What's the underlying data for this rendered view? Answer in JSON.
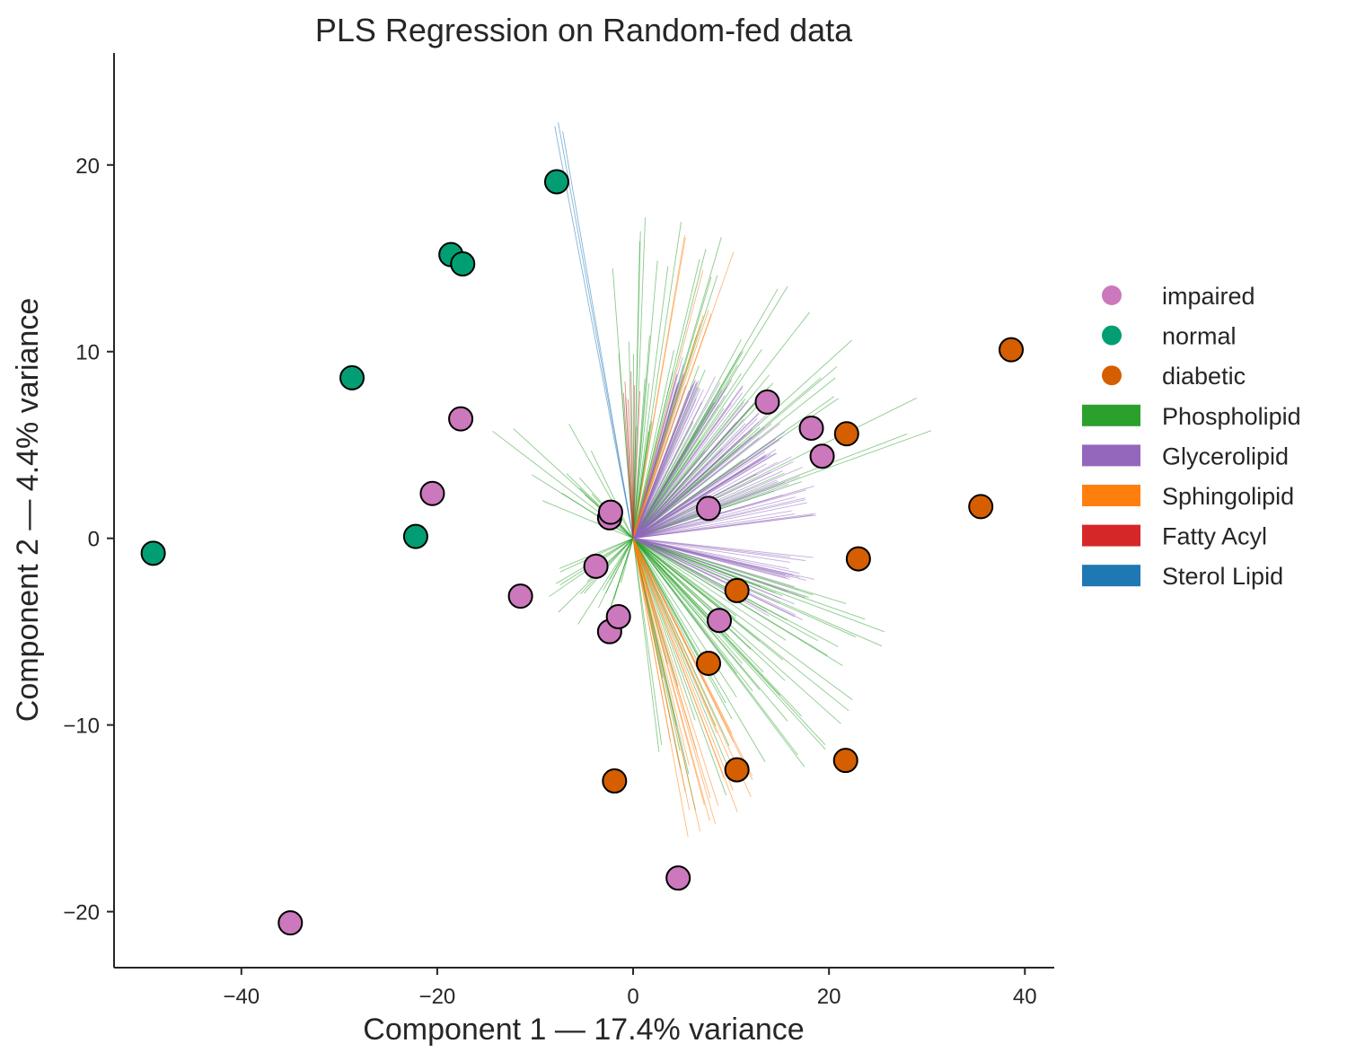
{
  "chart_data": {
    "type": "scatter",
    "title": "PLS Regression on Random-fed data",
    "xlabel": "Component 1 — 17.4% variance",
    "ylabel": "Component 2 — 4.4% variance",
    "xlim": [
      -53,
      43
    ],
    "ylim": [
      -23,
      26
    ],
    "x_ticks": [
      -40,
      -20,
      0,
      20,
      40
    ],
    "y_ticks": [
      -20,
      -10,
      0,
      10,
      20
    ],
    "grid": false,
    "legend_position": "right",
    "series": [
      {
        "name": "impaired",
        "color": "#CC78BC",
        "points": [
          [
            -35,
            -20.6
          ],
          [
            -20.5,
            2.4
          ],
          [
            -17.6,
            6.4
          ],
          [
            -11.5,
            -3.1
          ],
          [
            -3.8,
            -1.5
          ],
          [
            -2.4,
            -5
          ],
          [
            -1.5,
            -4.2
          ],
          [
            -2.4,
            1.1
          ],
          [
            -2.3,
            1.4
          ],
          [
            4.6,
            -18.2
          ],
          [
            7.7,
            1.6
          ],
          [
            8.8,
            -4.4
          ],
          [
            13.7,
            7.3
          ],
          [
            18.2,
            5.9
          ],
          [
            19.3,
            4.4
          ]
        ]
      },
      {
        "name": "normal",
        "color": "#029E73",
        "points": [
          [
            -49,
            -0.8
          ],
          [
            -28.7,
            8.6
          ],
          [
            -22.2,
            0.1
          ],
          [
            -18.6,
            15.2
          ],
          [
            -17.4,
            14.7
          ],
          [
            -7.8,
            19.1
          ]
        ]
      },
      {
        "name": "diabetic",
        "color": "#D55E00",
        "points": [
          [
            -1.9,
            -13
          ],
          [
            7.7,
            -6.7
          ],
          [
            10.6,
            -2.8
          ],
          [
            10.6,
            -12.4
          ],
          [
            21.7,
            -11.9
          ],
          [
            21.8,
            5.6
          ],
          [
            23,
            -1.1
          ],
          [
            35.5,
            1.7
          ],
          [
            38.6,
            10.1
          ]
        ]
      }
    ],
    "loadings": {
      "origin": [
        0,
        0
      ],
      "classes": [
        {
          "name": "Phospholipid",
          "color": "#2CA02C"
        },
        {
          "name": "Glycerolipid",
          "color": "#9467BD"
        },
        {
          "name": "Sphingolipid",
          "color": "#FF7F0E"
        },
        {
          "name": "Fatty Acyl",
          "color": "#D62728"
        },
        {
          "name": "Sterol Lipid",
          "color": "#1F77B4"
        }
      ]
    }
  }
}
